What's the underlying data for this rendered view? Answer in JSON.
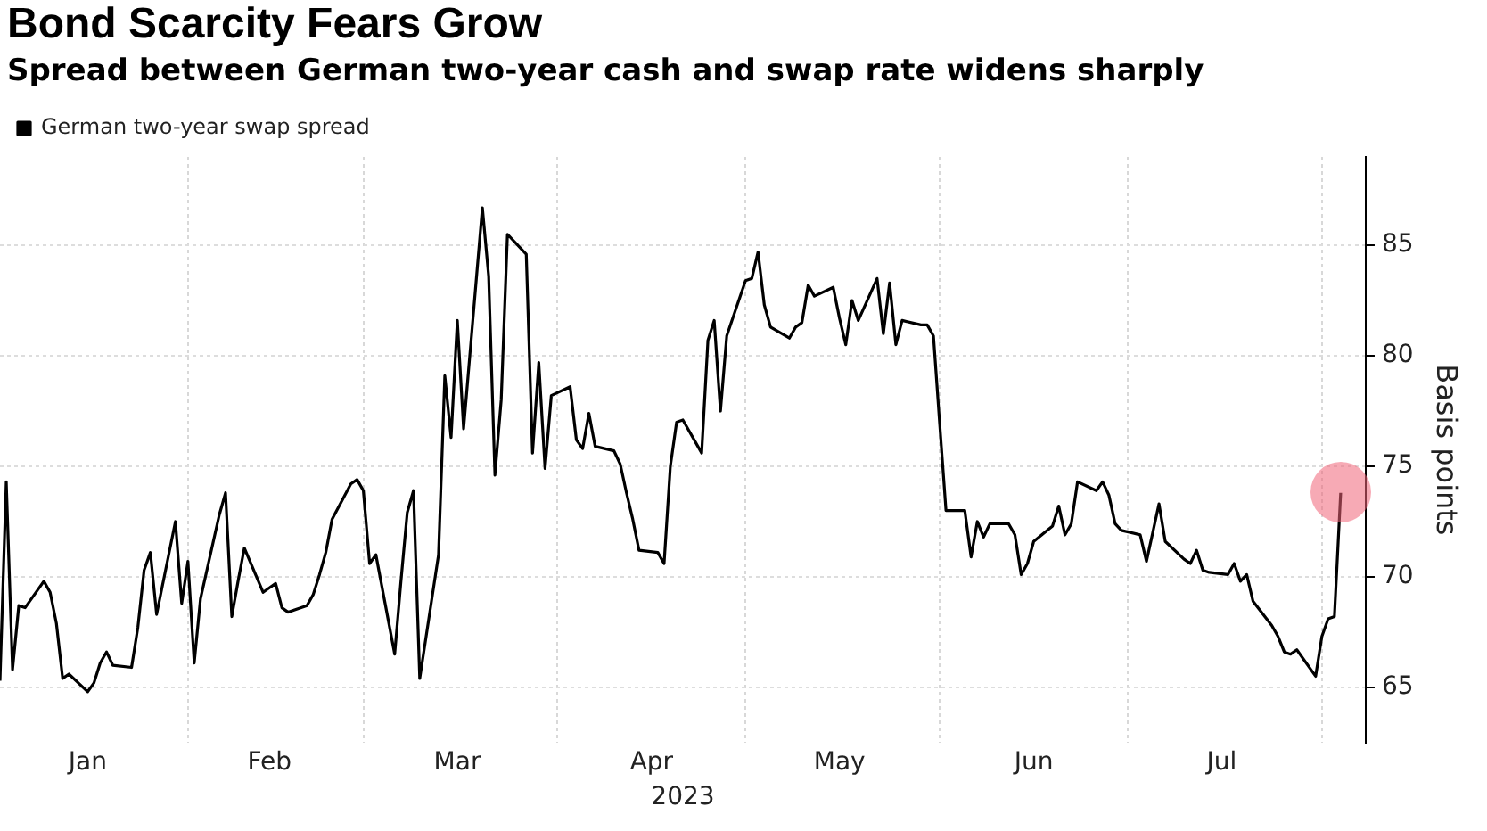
{
  "chart_data": {
    "type": "line",
    "title": "Bond Scarcity Fears Grow",
    "subtitle": "Spread between German two-year cash and swap rate widens sharply",
    "xlabel": "2023",
    "ylabel": "Basis points",
    "x": [
      "2023-01-02",
      "2023-01-03",
      "2023-01-04",
      "2023-01-05",
      "2023-01-06",
      "2023-01-09",
      "2023-01-10",
      "2023-01-11",
      "2023-01-12",
      "2023-01-13",
      "2023-01-16",
      "2023-01-17",
      "2023-01-18",
      "2023-01-19",
      "2023-01-20",
      "2023-01-23",
      "2023-01-24",
      "2023-01-25",
      "2023-01-26",
      "2023-01-27",
      "2023-01-30",
      "2023-01-31",
      "2023-02-01",
      "2023-02-02",
      "2023-02-03",
      "2023-02-06",
      "2023-02-07",
      "2023-02-08",
      "2023-02-09",
      "2023-02-10",
      "2023-02-13",
      "2023-02-14",
      "2023-02-15",
      "2023-02-16",
      "2023-02-17",
      "2023-02-20",
      "2023-02-21",
      "2023-02-22",
      "2023-02-23",
      "2023-02-24",
      "2023-02-27",
      "2023-02-28",
      "2023-03-01",
      "2023-03-02",
      "2023-03-03",
      "2023-03-06",
      "2023-03-07",
      "2023-03-08",
      "2023-03-09",
      "2023-03-10",
      "2023-03-13",
      "2023-03-14",
      "2023-03-15",
      "2023-03-16",
      "2023-03-17",
      "2023-03-20",
      "2023-03-21",
      "2023-03-22",
      "2023-03-23",
      "2023-03-24",
      "2023-03-27",
      "2023-03-28",
      "2023-03-29",
      "2023-03-30",
      "2023-03-31",
      "2023-04-03",
      "2023-04-04",
      "2023-04-05",
      "2023-04-06",
      "2023-04-07",
      "2023-04-10",
      "2023-04-11",
      "2023-04-12",
      "2023-04-13",
      "2023-04-14",
      "2023-04-17",
      "2023-04-18",
      "2023-04-19",
      "2023-04-20",
      "2023-04-21",
      "2023-04-24",
      "2023-04-25",
      "2023-04-26",
      "2023-04-27",
      "2023-04-28",
      "2023-05-01",
      "2023-05-02",
      "2023-05-03",
      "2023-05-04",
      "2023-05-05",
      "2023-05-08",
      "2023-05-09",
      "2023-05-10",
      "2023-05-11",
      "2023-05-12",
      "2023-05-15",
      "2023-05-16",
      "2023-05-17",
      "2023-05-18",
      "2023-05-19",
      "2023-05-22",
      "2023-05-23",
      "2023-05-24",
      "2023-05-25",
      "2023-05-26",
      "2023-05-29",
      "2023-05-30",
      "2023-05-31",
      "2023-06-01",
      "2023-06-02",
      "2023-06-05",
      "2023-06-06",
      "2023-06-07",
      "2023-06-08",
      "2023-06-09",
      "2023-06-12",
      "2023-06-13",
      "2023-06-14",
      "2023-06-15",
      "2023-06-16",
      "2023-06-19",
      "2023-06-20",
      "2023-06-21",
      "2023-06-22",
      "2023-06-23",
      "2023-06-26",
      "2023-06-27",
      "2023-06-28",
      "2023-06-29",
      "2023-06-30",
      "2023-07-03",
      "2023-07-04",
      "2023-07-05",
      "2023-07-06",
      "2023-07-07",
      "2023-07-10",
      "2023-07-11",
      "2023-07-12",
      "2023-07-13",
      "2023-07-14",
      "2023-07-17",
      "2023-07-18",
      "2023-07-19",
      "2023-07-20",
      "2023-07-21",
      "2023-07-24",
      "2023-07-25",
      "2023-07-26",
      "2023-07-27",
      "2023-07-28",
      "2023-07-31",
      "2023-08-01",
      "2023-08-02",
      "2023-08-03",
      "2023-08-04"
    ],
    "series": [
      {
        "name": "German two-year swap spread",
        "color": "#000000",
        "values": [
          65.3,
          74.3,
          65.8,
          68.7,
          68.6,
          69.8,
          69.3,
          67.9,
          65.4,
          65.6,
          64.8,
          65.2,
          66.1,
          66.6,
          66.0,
          65.9,
          67.7,
          70.3,
          71.1,
          68.3,
          72.5,
          68.8,
          70.7,
          66.1,
          69.0,
          72.8,
          73.8,
          68.2,
          69.8,
          71.3,
          69.3,
          69.5,
          69.7,
          68.6,
          68.4,
          68.7,
          69.2,
          70.1,
          71.1,
          72.6,
          74.2,
          74.4,
          73.9,
          70.6,
          71.0,
          66.5,
          69.8,
          72.9,
          73.9,
          65.4,
          71.0,
          79.1,
          76.3,
          81.6,
          76.7,
          86.7,
          83.6,
          74.6,
          78.0,
          85.5,
          84.6,
          75.6,
          79.7,
          74.9,
          78.2,
          78.6,
          76.2,
          75.8,
          77.4,
          75.9,
          75.7,
          75.1,
          73.8,
          72.6,
          71.2,
          71.1,
          70.6,
          75.0,
          77.0,
          77.1,
          75.6,
          80.7,
          81.6,
          77.5,
          80.9,
          83.4,
          83.5,
          84.7,
          82.3,
          81.3,
          80.8,
          81.3,
          81.5,
          83.2,
          82.7,
          83.1,
          81.7,
          80.5,
          82.5,
          81.6,
          83.5,
          81.0,
          83.3,
          80.5,
          81.6,
          81.4,
          81.4,
          80.9,
          76.9,
          73.0,
          73.0,
          70.9,
          72.5,
          71.8,
          72.4,
          72.4,
          71.9,
          70.1,
          70.6,
          71.6,
          72.3,
          73.2,
          71.9,
          72.4,
          74.3,
          73.9,
          74.3,
          73.7,
          72.4,
          72.1,
          71.9,
          70.7,
          72.0,
          73.3,
          71.6,
          70.8,
          70.6,
          71.2,
          70.3,
          70.2,
          70.1,
          70.6,
          69.8,
          70.1,
          68.9,
          67.8,
          67.3,
          66.6,
          66.5,
          66.7,
          65.5,
          67.3,
          68.1,
          68.2,
          73.8
        ]
      }
    ],
    "xlim": [
      "2023-01-02",
      "2023-08-08"
    ],
    "xticks": [
      {
        "value": "2023-01-16",
        "label": "Jan"
      },
      {
        "value": "2023-02-01",
        "label": null
      },
      {
        "value": "2023-02-14",
        "label": "Feb"
      },
      {
        "value": "2023-03-01",
        "label": null
      },
      {
        "value": "2023-03-16",
        "label": "Mar"
      },
      {
        "value": "2023-04-01",
        "label": null
      },
      {
        "value": "2023-04-16",
        "label": "Apr"
      },
      {
        "value": "2023-05-01",
        "label": null
      },
      {
        "value": "2023-05-16",
        "label": "May"
      },
      {
        "value": "2023-06-01",
        "label": null
      },
      {
        "value": "2023-06-16",
        "label": "Jun"
      },
      {
        "value": "2023-07-01",
        "label": null
      },
      {
        "value": "2023-07-16",
        "label": "Jul"
      },
      {
        "value": "2023-08-01",
        "label": null
      }
    ],
    "ylim": [
      62.5,
      89
    ],
    "yticks": [
      65,
      70,
      75,
      80,
      85
    ],
    "grid": true,
    "legend": "top left",
    "marker": "none",
    "line_style": "solid"
  }
}
